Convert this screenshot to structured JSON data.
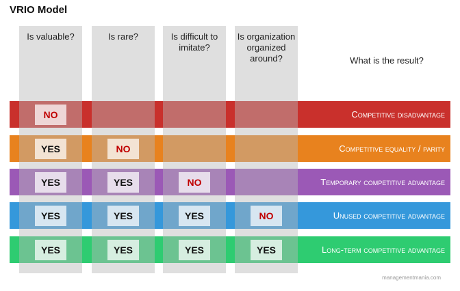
{
  "title": "VRIO Model",
  "columns": [
    "Is valuable?",
    "Is rare?",
    "Is difficult to imitate?",
    "Is organization organized around?"
  ],
  "result_header": "What is the result?",
  "rows": [
    {
      "result": "Competitive disadvantage",
      "color": "#c9302c",
      "answers": [
        "NO"
      ]
    },
    {
      "result": "Competitive equality / parity",
      "color": "#e8821e",
      "answers": [
        "YES",
        "NO"
      ]
    },
    {
      "result": "Temporary competitive advantage",
      "color": "#9b59b6",
      "answers": [
        "YES",
        "YES",
        "NO"
      ]
    },
    {
      "result": "Unused competitive advantage",
      "color": "#3598db",
      "answers": [
        "YES",
        "YES",
        "YES",
        "NO"
      ]
    },
    {
      "result": "Long-term competitive advantage",
      "color": "#2ecc71",
      "answers": [
        "YES",
        "YES",
        "YES",
        "YES"
      ]
    }
  ],
  "watermark": "managementmania.com"
}
